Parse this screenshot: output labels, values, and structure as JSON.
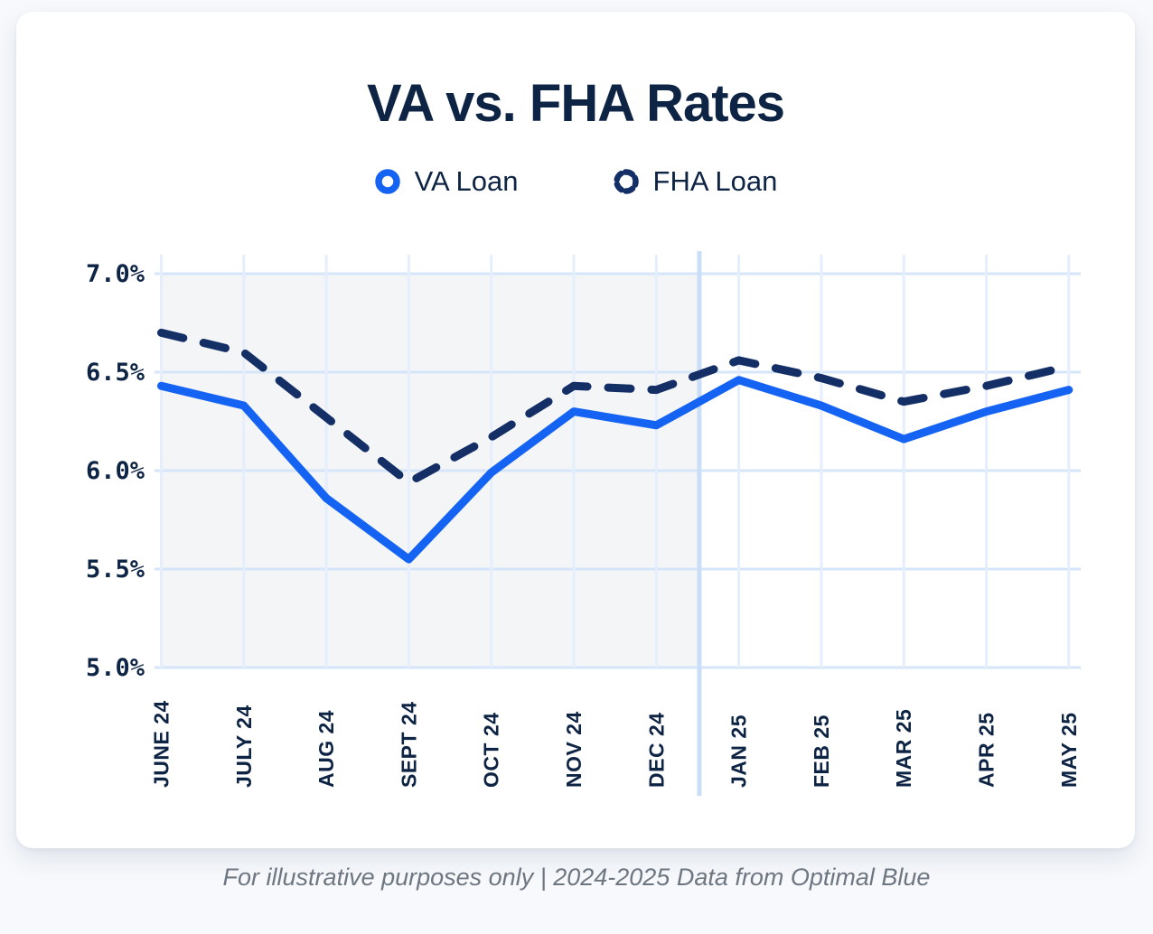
{
  "page": {
    "footer": "For illustrative purposes only | 2024-2025 Data from Optimal Blue"
  },
  "colors": {
    "va_blue": "#1563f2",
    "fha_navy": "#142f66",
    "text_navy": "#0e2444",
    "grid_major": "#d5e5fa",
    "grid_minor": "#e5eefc",
    "divider": "#cadef7",
    "shade_gray": "#f4f5f7",
    "footer_gray": "#6e7781",
    "card_bg": "#ffffff",
    "page_bg": "#f7f9fc"
  },
  "chart_data": {
    "type": "line",
    "title": "VA vs. FHA Rates",
    "categories": [
      "JUNE 24",
      "JULY 24",
      "AUG 24",
      "SEPT 24",
      "OCT 24",
      "NOV 24",
      "DEC 24",
      "JAN 25",
      "FEB 25",
      "MAR 25",
      "APR 25",
      "MAY 25"
    ],
    "series": [
      {
        "name": "VA Loan",
        "style": "solid",
        "color": "#1563f2",
        "values": [
          6.43,
          6.33,
          5.86,
          5.55,
          5.99,
          6.3,
          6.23,
          6.46,
          6.33,
          6.16,
          6.3,
          6.41
        ]
      },
      {
        "name": "FHA Loan",
        "style": "dashed",
        "color": "#142f66",
        "values": [
          6.7,
          6.6,
          6.27,
          5.94,
          6.17,
          6.43,
          6.41,
          6.56,
          6.47,
          6.35,
          6.43,
          6.53
        ]
      }
    ],
    "ylabel": "",
    "xlabel": "",
    "ylim": [
      5.0,
      7.0
    ],
    "yticks": [
      {
        "value": 7.0,
        "label": "7.0%"
      },
      {
        "value": 6.5,
        "label": "6.5%"
      },
      {
        "value": 6.0,
        "label": "6.0%"
      },
      {
        "value": 5.5,
        "label": "5.5%"
      },
      {
        "value": 5.0,
        "label": "5.0%"
      }
    ],
    "grid": true,
    "legend_position": "top",
    "shaded_region": {
      "from": "JUNE 24",
      "to": "DEC 24"
    },
    "divider_after": "DEC 24"
  }
}
